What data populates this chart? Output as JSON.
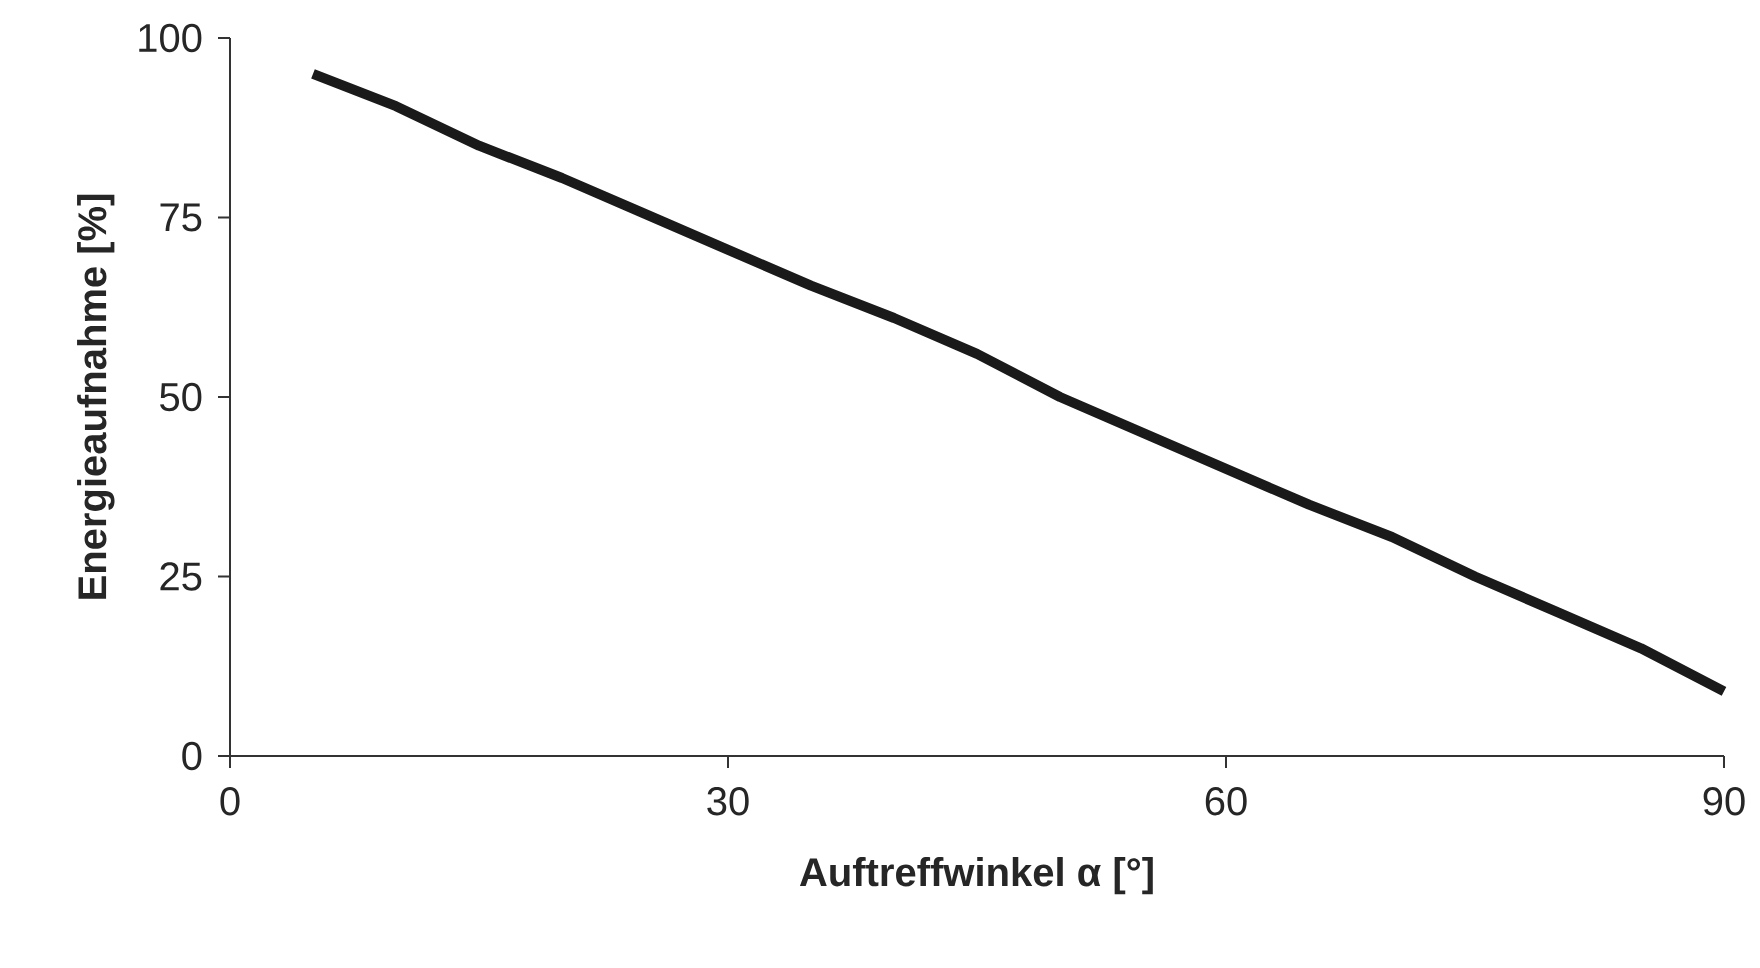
{
  "chart_data": {
    "type": "line",
    "xlabel": "Auftreffwinkel α [°]",
    "ylabel": "Energieaufnahme [%]",
    "x": [
      5,
      10,
      15,
      20,
      25,
      30,
      35,
      40,
      45,
      50,
      55,
      60,
      65,
      70,
      75,
      80,
      85,
      90
    ],
    "values": [
      95,
      90.5,
      85,
      80.5,
      75.5,
      70.5,
      65.5,
      61,
      56,
      50,
      45,
      40,
      35,
      30.5,
      25,
      20,
      15,
      9
    ],
    "color": "#1a1a1a",
    "line_style": "solid",
    "marker": "none",
    "xlim": [
      0,
      90
    ],
    "ylim": [
      0,
      100
    ],
    "xticks": [
      0,
      30,
      60,
      90
    ],
    "yticks": [
      0,
      25,
      50,
      75,
      100
    ]
  }
}
